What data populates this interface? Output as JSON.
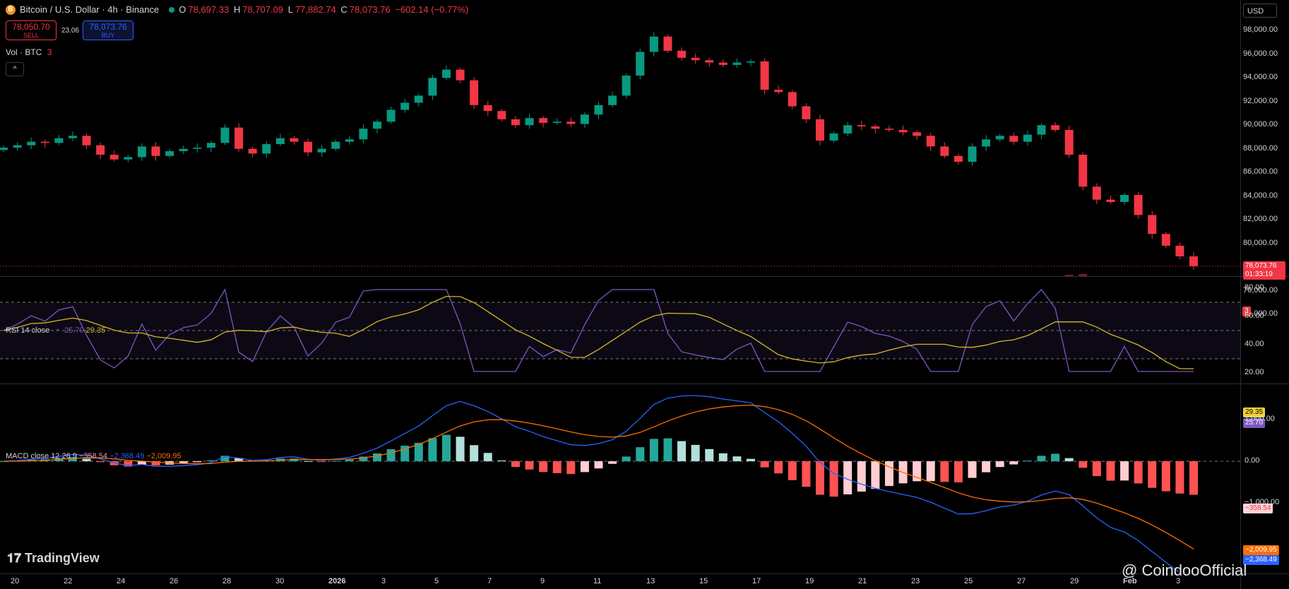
{
  "header": {
    "symbol": "Bitcoin / U.S. Dollar · 4h · Binance",
    "coin_icon": "B",
    "ohlc": {
      "o_label": "O",
      "o": "78,697.33",
      "h_label": "H",
      "h": "78,707.09",
      "l_label": "L",
      "l": "77,882.74",
      "c_label": "C",
      "c": "78,073.76",
      "change": "−602.14 (−0.77%)"
    },
    "sell_price": "78,050.70",
    "sell_label": "SELL",
    "spread": "23.06",
    "buy_price": "78,073.76",
    "buy_label": "BUY",
    "volume_label": "Vol · BTC",
    "volume_count": "3",
    "collapse_icon": "^",
    "currency": "USD"
  },
  "price_axis": [
    "98,000.00",
    "96,000.00",
    "94,000.00",
    "92,000.00",
    "90,000.00",
    "88,000.00",
    "86,000.00",
    "84,000.00",
    "82,000.00",
    "80,000.00",
    "76,000.00",
    "74,000.00"
  ],
  "price_tag": {
    "value": "78,073.76",
    "countdown": "01:33:19"
  },
  "events_badge": "3",
  "rsi": {
    "label": "RSI 14 close",
    "val1": "25.70",
    "val2": "29.35",
    "axis": [
      "80.00",
      "60.00",
      "40.00",
      "20.00"
    ],
    "tag_ma": "29.35",
    "tag_rsi": "25.70"
  },
  "macd": {
    "label": "MACD close 12 26 9",
    "hist": "−358.54",
    "macd": "−2,368.49",
    "signal": "−2,009.95",
    "axis": [
      "1,000.00",
      "0.00",
      "−1,000.00"
    ],
    "tag_hist": "−358.54",
    "tag_signal": "−2,009.95",
    "tag_macd": "−2,368.49"
  },
  "time_axis": [
    "20",
    "22",
    "24",
    "26",
    "28",
    "30",
    "2026",
    "3",
    "5",
    "7",
    "9",
    "11",
    "13",
    "15",
    "17",
    "19",
    "21",
    "23",
    "25",
    "27",
    "29",
    "Feb",
    "3"
  ],
  "brand": "TradingView",
  "watermark": "@ CoindooOfficial",
  "colors": {
    "up": "#089981",
    "down": "#f23645",
    "rsi": "#7e57c2",
    "ma": "#d4b82a",
    "macd": "#2962ff",
    "signal": "#ff6d00"
  },
  "chart_data": {
    "type": "candlestick",
    "title": "Bitcoin / U.S. Dollar · 4h · Binance",
    "close_series": [
      88100,
      88300,
      88600,
      88500,
      88900,
      89100,
      88300,
      87500,
      87100,
      87300,
      88200,
      87400,
      87800,
      88000,
      88100,
      88500,
      89800,
      88000,
      87600,
      88400,
      88900,
      88600,
      87700,
      88000,
      88600,
      88800,
      89700,
      90300,
      91300,
      91900,
      92500,
      94000,
      94700,
      93800,
      91700,
      91200,
      90500,
      90000,
      90600,
      90200,
      90300,
      90100,
      90900,
      91700,
      92500,
      94200,
      96200,
      97500,
      96300,
      95700,
      95500,
      95300,
      95100,
      95300,
      95400,
      93000,
      92800,
      91600,
      90500,
      88700,
      89300,
      90000,
      89900,
      89700,
      89600,
      89400,
      89100,
      88200,
      87400,
      86900,
      88200,
      88800,
      89100,
      88600,
      89200,
      90000,
      89600,
      87500,
      84800,
      83700,
      83500,
      84100,
      82400,
      80800,
      79800,
      78900,
      78073.76
    ],
    "ylim": [
      74000,
      98800
    ],
    "rsi_range": [
      20,
      80
    ],
    "macd_range": [
      -2500,
      1500
    ]
  }
}
